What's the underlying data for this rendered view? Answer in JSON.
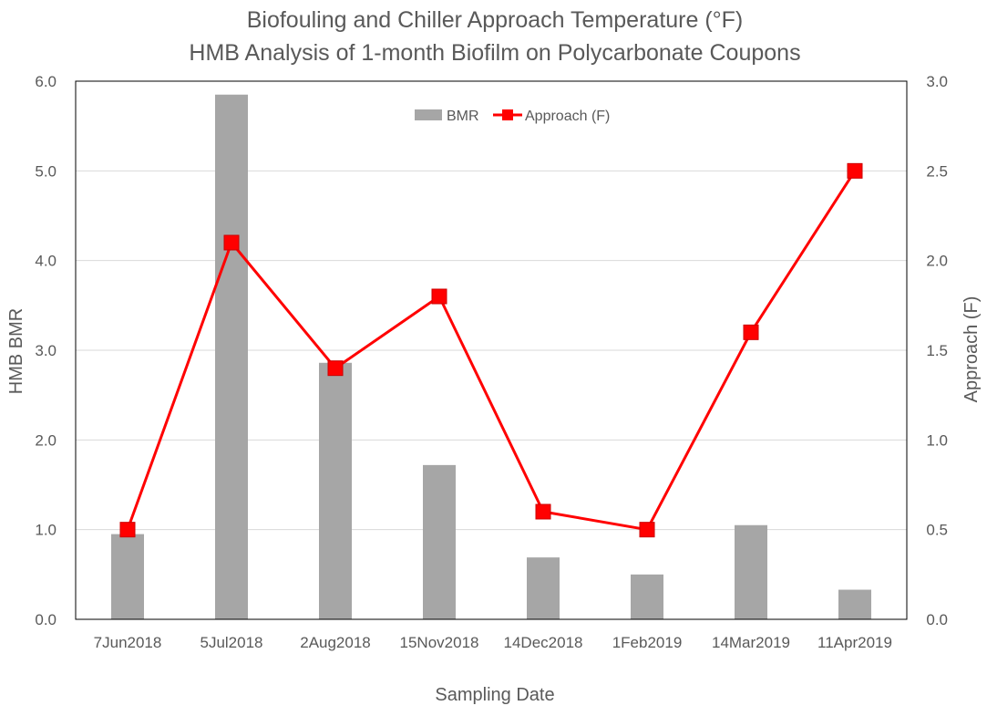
{
  "chart_data": {
    "type": "bar",
    "title": "Biofouling and Chiller Approach Temperature (°F)",
    "subtitle": "HMB Analysis of 1-month Biofilm on Polycarbonate Coupons",
    "xlabel": "Sampling Date",
    "ylabel": "HMB BMR",
    "y2label": "Approach (F)",
    "categories": [
      "7Jun2018",
      "5Jul2018",
      "2Aug2018",
      "15Nov2018",
      "14Dec2018",
      "1Feb2019",
      "14Mar2019",
      "11Apr2019"
    ],
    "ylim": [
      0,
      6
    ],
    "yticks": [
      "0.0",
      "1.0",
      "2.0",
      "3.0",
      "4.0",
      "5.0",
      "6.0"
    ],
    "y2lim": [
      0,
      3
    ],
    "y2ticks": [
      "0.0",
      "0.5",
      "1.0",
      "1.5",
      "2.0",
      "2.5",
      "3.0"
    ],
    "grid": true,
    "legend_position": "top-center",
    "series": [
      {
        "name": "BMR",
        "type": "bar",
        "axis": "left",
        "color": "#a6a6a6",
        "values": [
          0.95,
          5.85,
          2.86,
          1.72,
          0.69,
          0.5,
          1.05,
          0.33
        ]
      },
      {
        "name": "Approach (F)",
        "type": "line",
        "axis": "right",
        "color": "#ff0000",
        "marker": "square",
        "values": [
          0.5,
          2.1,
          1.4,
          1.8,
          0.6,
          0.5,
          1.6,
          2.5
        ]
      }
    ]
  }
}
